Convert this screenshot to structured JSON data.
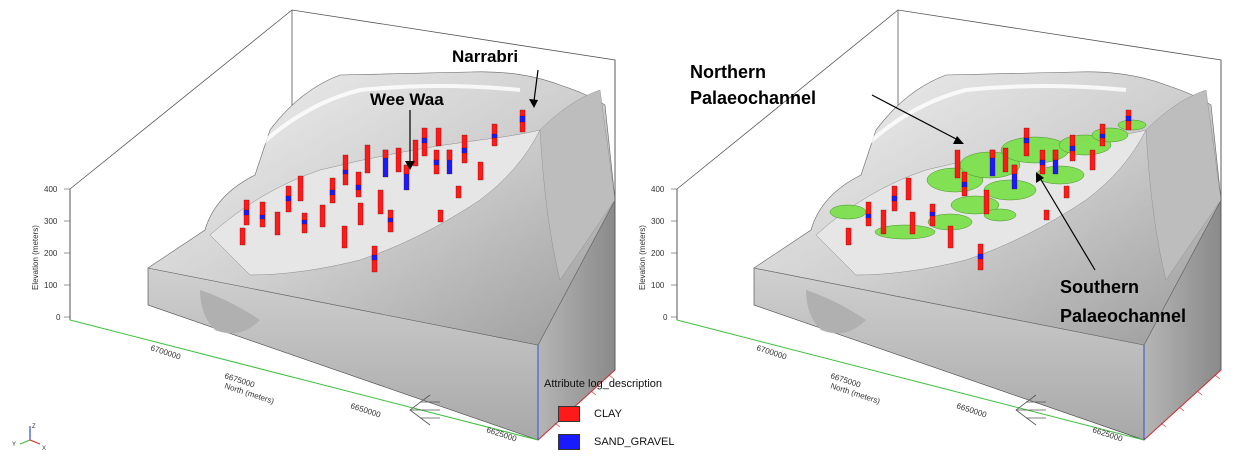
{
  "colors": {
    "clay": "#ff1a1a",
    "sand_gravel": "#1a1aff",
    "palaeochannel": "#7de04e",
    "terrain": "#c8c8c8",
    "north_axis": "#3dbf3d",
    "east_axis": "#d03030",
    "vertical_axis": "#3050d0"
  },
  "left_panel": {
    "labels": {
      "narrabri": "Narrabri",
      "wee_waa": "Wee Waa"
    },
    "elevation_ticks": [
      "400",
      "300",
      "200",
      "100",
      "0"
    ],
    "elevation_axis_title": "Elevation (meters)",
    "north_ticks": [
      "6700000",
      "6675000",
      "6650000",
      "6625000"
    ],
    "north_axis_title": "North (meters)"
  },
  "right_panel": {
    "labels": {
      "northern_line1": "Northern",
      "northern_line2": "Palaeochannel",
      "southern_line1": "Southern",
      "southern_line2": "Palaeochannel"
    },
    "elevation_ticks": [
      "400",
      "300",
      "200",
      "100",
      "0"
    ],
    "elevation_axis_title": "Elevation (meters)",
    "north_ticks": [
      "6700000",
      "6675000",
      "6650000",
      "6625000"
    ],
    "north_axis_title": "North (meters)"
  },
  "legend": {
    "title": "Attribute log_description",
    "items": [
      {
        "label": "CLAY",
        "color": "#ff1a1a"
      },
      {
        "label": "SAND_GRAVEL",
        "color": "#1a1aff"
      }
    ]
  },
  "orientation_icon": {
    "axes": [
      "Y",
      "Z",
      "X"
    ]
  }
}
